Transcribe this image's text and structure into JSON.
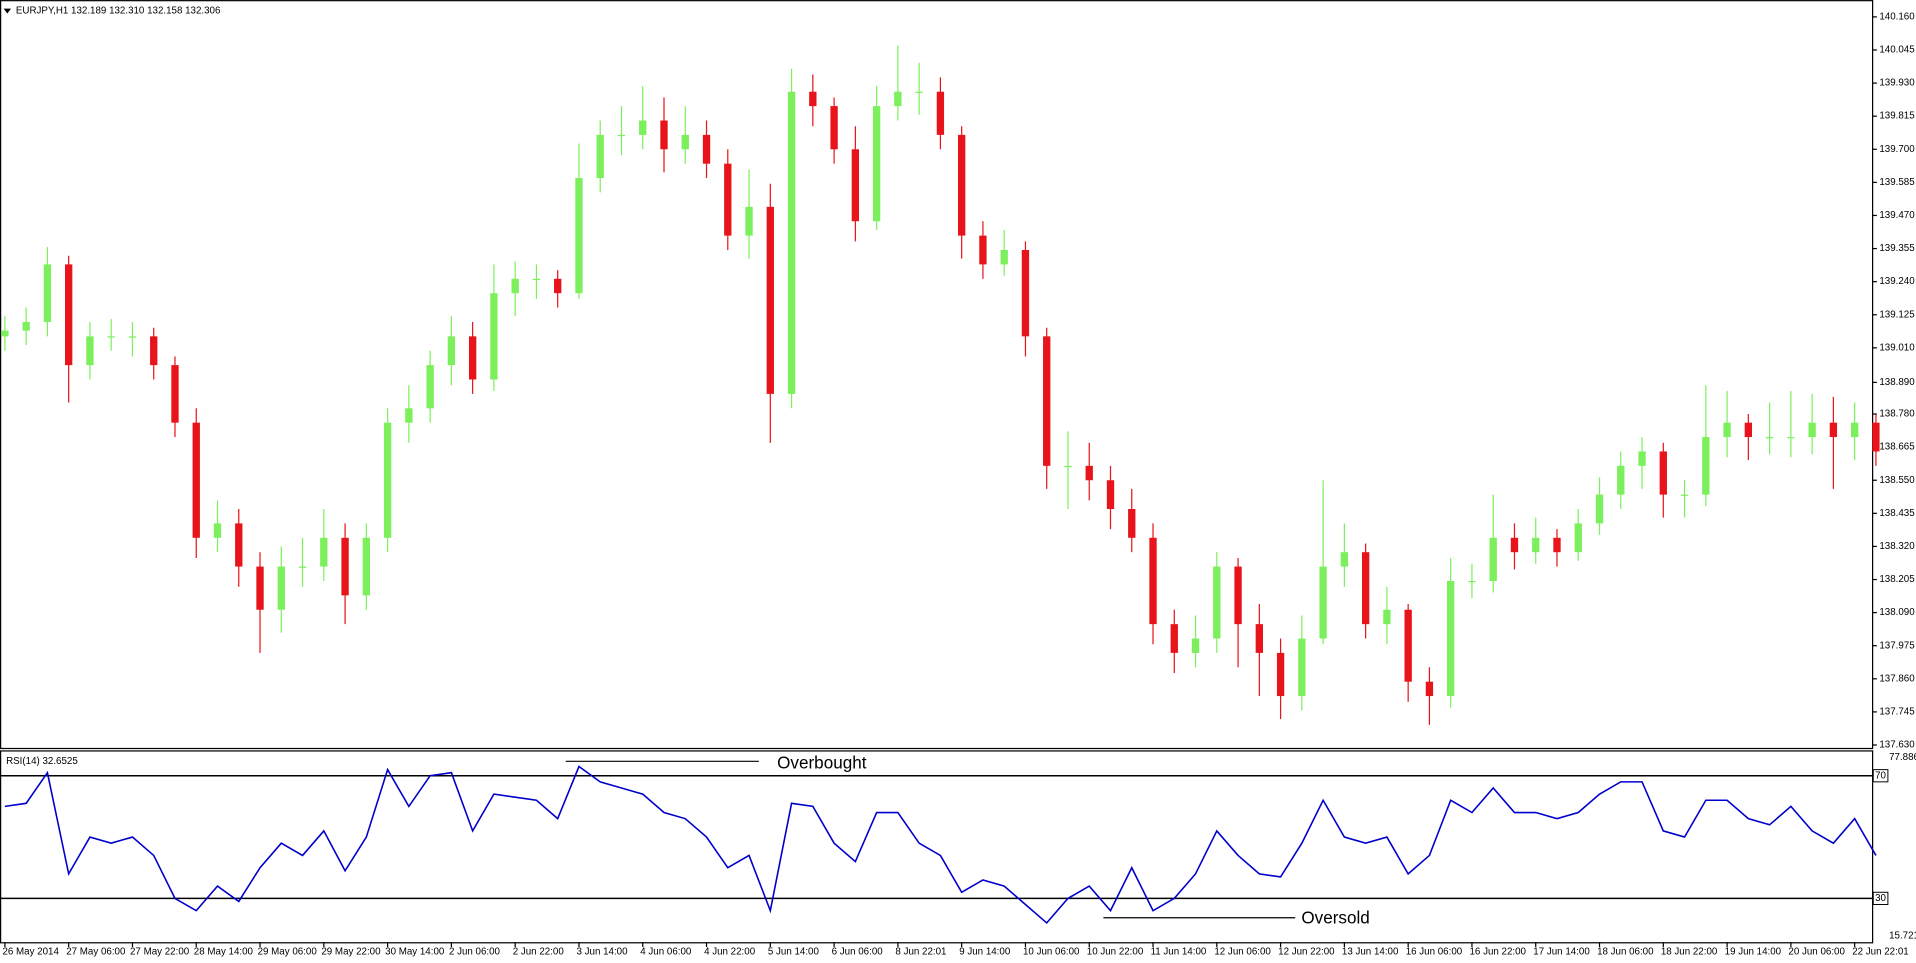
{
  "chart_data": [
    {
      "type": "candlestick",
      "title": "EURJPY,H1  132.189 132.310 132.158 132.306",
      "categories": [
        "26 May 2014",
        null,
        null,
        "27 May 06:00",
        null,
        null,
        "27 May 22:00",
        null,
        null,
        "28 May 14:00",
        null,
        null,
        "29 May 06:00",
        null,
        null,
        "29 May 22:00",
        null,
        null,
        "30 May 14:00",
        null,
        null,
        "2 Jun 06:00",
        null,
        null,
        "2 Jun 22:00",
        null,
        null,
        "3 Jun 14:00",
        null,
        null,
        "4 Jun 06:00",
        null,
        null,
        "4 Jun 22:00",
        null,
        null,
        "5 Jun 14:00",
        null,
        null,
        "6 Jun 06:00",
        null,
        null,
        "8 Jun 22:01",
        null,
        null,
        "9 Jun 14:00",
        null,
        null,
        "10 Jun 06:00",
        null,
        null,
        "10 Jun 22:00",
        null,
        null,
        "11 Jun 14:00",
        null,
        null,
        "12 Jun 06:00",
        null,
        null,
        "12 Jun 22:00",
        null,
        null,
        "13 Jun 14:00",
        null,
        null,
        "16 Jun 06:00",
        null,
        null,
        "16 Jun 22:00",
        null,
        null,
        "17 Jun 14:00",
        null,
        null,
        "18 Jun 06:00",
        null,
        null,
        "18 Jun 22:00",
        null,
        null,
        "19 Jun 14:00",
        null,
        null,
        "20 Jun 06:00",
        null,
        null,
        "22 Jun 22:01",
        null
      ],
      "open": [
        139.05,
        139.07,
        139.1,
        139.3,
        138.95,
        139.05,
        139.05,
        139.05,
        138.95,
        138.75,
        138.35,
        138.4,
        138.25,
        138.1,
        138.25,
        138.25,
        138.35,
        138.15,
        138.35,
        138.75,
        138.8,
        138.95,
        139.05,
        138.9,
        139.2,
        139.25,
        139.25,
        139.2,
        139.6,
        139.75,
        139.75,
        139.8,
        139.7,
        139.75,
        139.65,
        139.4,
        139.5,
        138.85,
        139.9,
        139.85,
        139.7,
        139.45,
        139.85,
        139.9,
        139.9,
        139.75,
        139.4,
        139.3,
        139.35,
        139.05,
        138.6,
        138.6,
        138.55,
        138.45,
        138.35,
        138.05,
        137.95,
        138.0,
        138.25,
        138.05,
        137.95,
        137.8,
        138.0,
        138.25,
        138.3,
        138.05,
        138.1,
        137.85,
        137.8,
        138.2,
        138.2,
        138.35,
        138.3,
        138.35,
        138.3,
        138.4,
        138.5,
        138.6,
        138.65,
        138.5,
        138.5,
        138.7,
        138.75,
        138.7,
        138.7,
        138.7,
        138.75,
        138.7,
        138.75
      ],
      "high": [
        139.12,
        139.15,
        139.36,
        139.33,
        139.1,
        139.11,
        139.1,
        139.08,
        138.98,
        138.8,
        138.48,
        138.45,
        138.3,
        138.32,
        138.35,
        138.45,
        138.4,
        138.4,
        138.8,
        138.88,
        139.0,
        139.12,
        139.1,
        139.3,
        139.31,
        139.3,
        139.28,
        139.72,
        139.8,
        139.85,
        139.92,
        139.88,
        139.85,
        139.8,
        139.7,
        139.63,
        139.58,
        139.98,
        139.96,
        139.88,
        139.78,
        139.92,
        140.06,
        140.0,
        139.95,
        139.78,
        139.45,
        139.42,
        139.38,
        139.08,
        138.72,
        138.68,
        138.6,
        138.52,
        138.4,
        138.1,
        138.08,
        138.3,
        138.28,
        138.12,
        138.0,
        138.08,
        138.55,
        138.4,
        138.33,
        138.18,
        138.12,
        137.9,
        138.28,
        138.26,
        138.5,
        138.4,
        138.42,
        138.38,
        138.45,
        138.56,
        138.65,
        138.7,
        138.68,
        138.55,
        138.88,
        138.86,
        138.78,
        138.82,
        138.86,
        138.85,
        138.84,
        138.82,
        138.78
      ],
      "low": [
        139.0,
        139.02,
        139.05,
        138.82,
        138.9,
        139.0,
        138.98,
        138.9,
        138.7,
        138.28,
        138.3,
        138.18,
        137.95,
        138.02,
        138.18,
        138.2,
        138.05,
        138.1,
        138.3,
        138.68,
        138.75,
        138.88,
        138.85,
        138.86,
        139.12,
        139.18,
        139.15,
        139.18,
        139.55,
        139.68,
        139.7,
        139.62,
        139.65,
        139.6,
        139.35,
        139.32,
        138.68,
        138.8,
        139.78,
        139.65,
        139.38,
        139.42,
        139.8,
        139.82,
        139.7,
        139.32,
        139.25,
        139.26,
        138.98,
        138.52,
        138.45,
        138.48,
        138.38,
        138.3,
        137.98,
        137.88,
        137.9,
        137.95,
        137.9,
        137.8,
        137.72,
        137.75,
        137.98,
        138.18,
        138.0,
        137.98,
        137.78,
        137.7,
        137.76,
        138.14,
        138.16,
        138.24,
        138.26,
        138.25,
        138.27,
        138.36,
        138.45,
        138.52,
        138.42,
        138.42,
        138.46,
        138.63,
        138.62,
        138.64,
        138.63,
        138.64,
        138.52,
        138.62,
        138.6
      ],
      "close": [
        139.07,
        139.1,
        139.3,
        138.95,
        139.05,
        139.05,
        139.05,
        138.95,
        138.75,
        138.35,
        138.4,
        138.25,
        138.1,
        138.25,
        138.25,
        138.35,
        138.15,
        138.35,
        138.75,
        138.8,
        138.95,
        139.05,
        138.9,
        139.2,
        139.25,
        139.25,
        139.2,
        139.6,
        139.75,
        139.75,
        139.8,
        139.7,
        139.75,
        139.65,
        139.4,
        139.5,
        138.85,
        139.9,
        139.85,
        139.7,
        139.45,
        139.85,
        139.9,
        139.9,
        139.75,
        139.4,
        139.3,
        139.35,
        139.05,
        138.6,
        138.6,
        138.55,
        138.45,
        138.35,
        138.05,
        137.95,
        138.0,
        138.25,
        138.05,
        137.95,
        137.8,
        138.0,
        138.25,
        138.3,
        138.05,
        138.1,
        137.85,
        137.8,
        138.2,
        138.2,
        138.35,
        138.3,
        138.35,
        138.3,
        138.4,
        138.5,
        138.6,
        138.65,
        138.5,
        138.5,
        138.7,
        138.75,
        138.7,
        138.7,
        138.7,
        138.75,
        138.7,
        138.75,
        138.65
      ],
      "up_color": "#7cf05c",
      "down_color": "#e8141b",
      "ylim": [
        137.62,
        140.21
      ],
      "yticks": [
        {
          "value": 140.16,
          "label": "140.160"
        },
        140.045,
        {
          "value": 139.93,
          "label": "139.930"
        },
        139.815,
        {
          "value": 139.7,
          "label": "139.700"
        },
        139.585,
        {
          "value": 139.47,
          "label": "139.470"
        },
        139.355,
        {
          "value": 139.24,
          "label": "139.240"
        },
        139.125,
        {
          "value": 139.01,
          "label": "139.010"
        },
        {
          "value": 138.89,
          "label": "138.890"
        },
        {
          "value": 138.78,
          "label": "138.780"
        },
        138.665,
        {
          "value": 138.55,
          "label": "138.550"
        },
        138.435,
        {
          "value": 138.32,
          "label": "138.320"
        },
        138.205,
        {
          "value": 138.09,
          "label": "138.090"
        },
        137.975,
        {
          "value": 137.86,
          "label": "137.860"
        },
        137.745,
        {
          "value": 137.63,
          "label": "137.630"
        }
      ]
    },
    {
      "type": "line",
      "title": "RSI(14) 32.6525",
      "color": "#0000cc",
      "values": [
        60,
        61,
        71,
        38,
        50,
        48,
        50,
        44,
        30,
        26,
        34,
        29,
        40,
        48,
        44,
        52,
        39,
        50,
        72,
        60,
        70,
        71,
        52,
        64,
        63,
        62,
        56,
        73,
        68,
        66,
        64,
        58,
        56,
        50,
        40,
        44,
        26,
        61,
        60,
        48,
        42,
        58,
        58,
        48,
        44,
        32,
        36,
        34,
        28,
        22,
        30,
        34,
        26,
        40,
        26,
        30,
        38,
        52,
        44,
        38,
        37,
        48,
        62,
        50,
        48,
        50,
        38,
        44,
        62,
        58,
        66,
        58,
        58,
        56,
        58,
        64,
        68,
        68,
        52,
        50,
        62,
        62,
        56,
        54,
        60,
        52,
        48,
        56,
        44
      ],
      "ylim": [
        15.721,
        77.8868
      ],
      "yticks": [
        70,
        30
      ],
      "annotations": [
        "Overbought",
        "Oversold"
      ]
    }
  ]
}
